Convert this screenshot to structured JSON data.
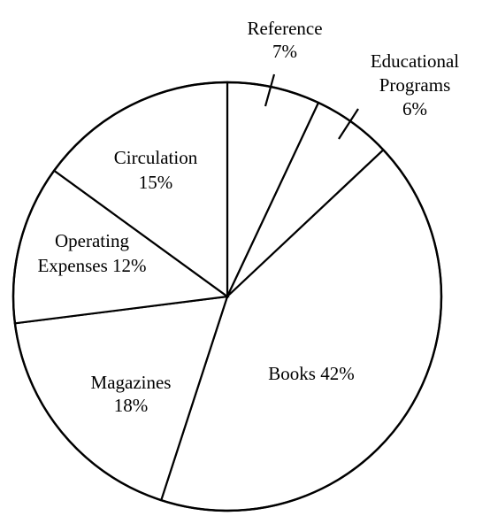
{
  "chart_data": {
    "type": "pie",
    "title": "",
    "start_angle_deg": 0,
    "direction": "clockwise",
    "slices": [
      {
        "name": "Reference",
        "value": 7,
        "label_lines": [
          "Reference",
          "7%"
        ],
        "leader": true
      },
      {
        "name": "Educational Programs",
        "value": 6,
        "label_lines": [
          "Educational",
          "Programs",
          "6%"
        ],
        "leader": true
      },
      {
        "name": "Books",
        "value": 42,
        "label_lines": [
          "Books 42%"
        ],
        "leader": false
      },
      {
        "name": "Magazines",
        "value": 18,
        "label_lines": [
          "Magazines",
          "18%"
        ],
        "leader": false
      },
      {
        "name": "Operating Expenses",
        "value": 12,
        "label_lines": [
          "Operating",
          "Expenses 12%"
        ],
        "leader": false
      },
      {
        "name": "Circulation",
        "value": 15,
        "label_lines": [
          "Circulation",
          "15%"
        ],
        "leader": false
      }
    ],
    "colors": {
      "fill": "#ffffff",
      "stroke": "#000000"
    },
    "legend": "none"
  }
}
